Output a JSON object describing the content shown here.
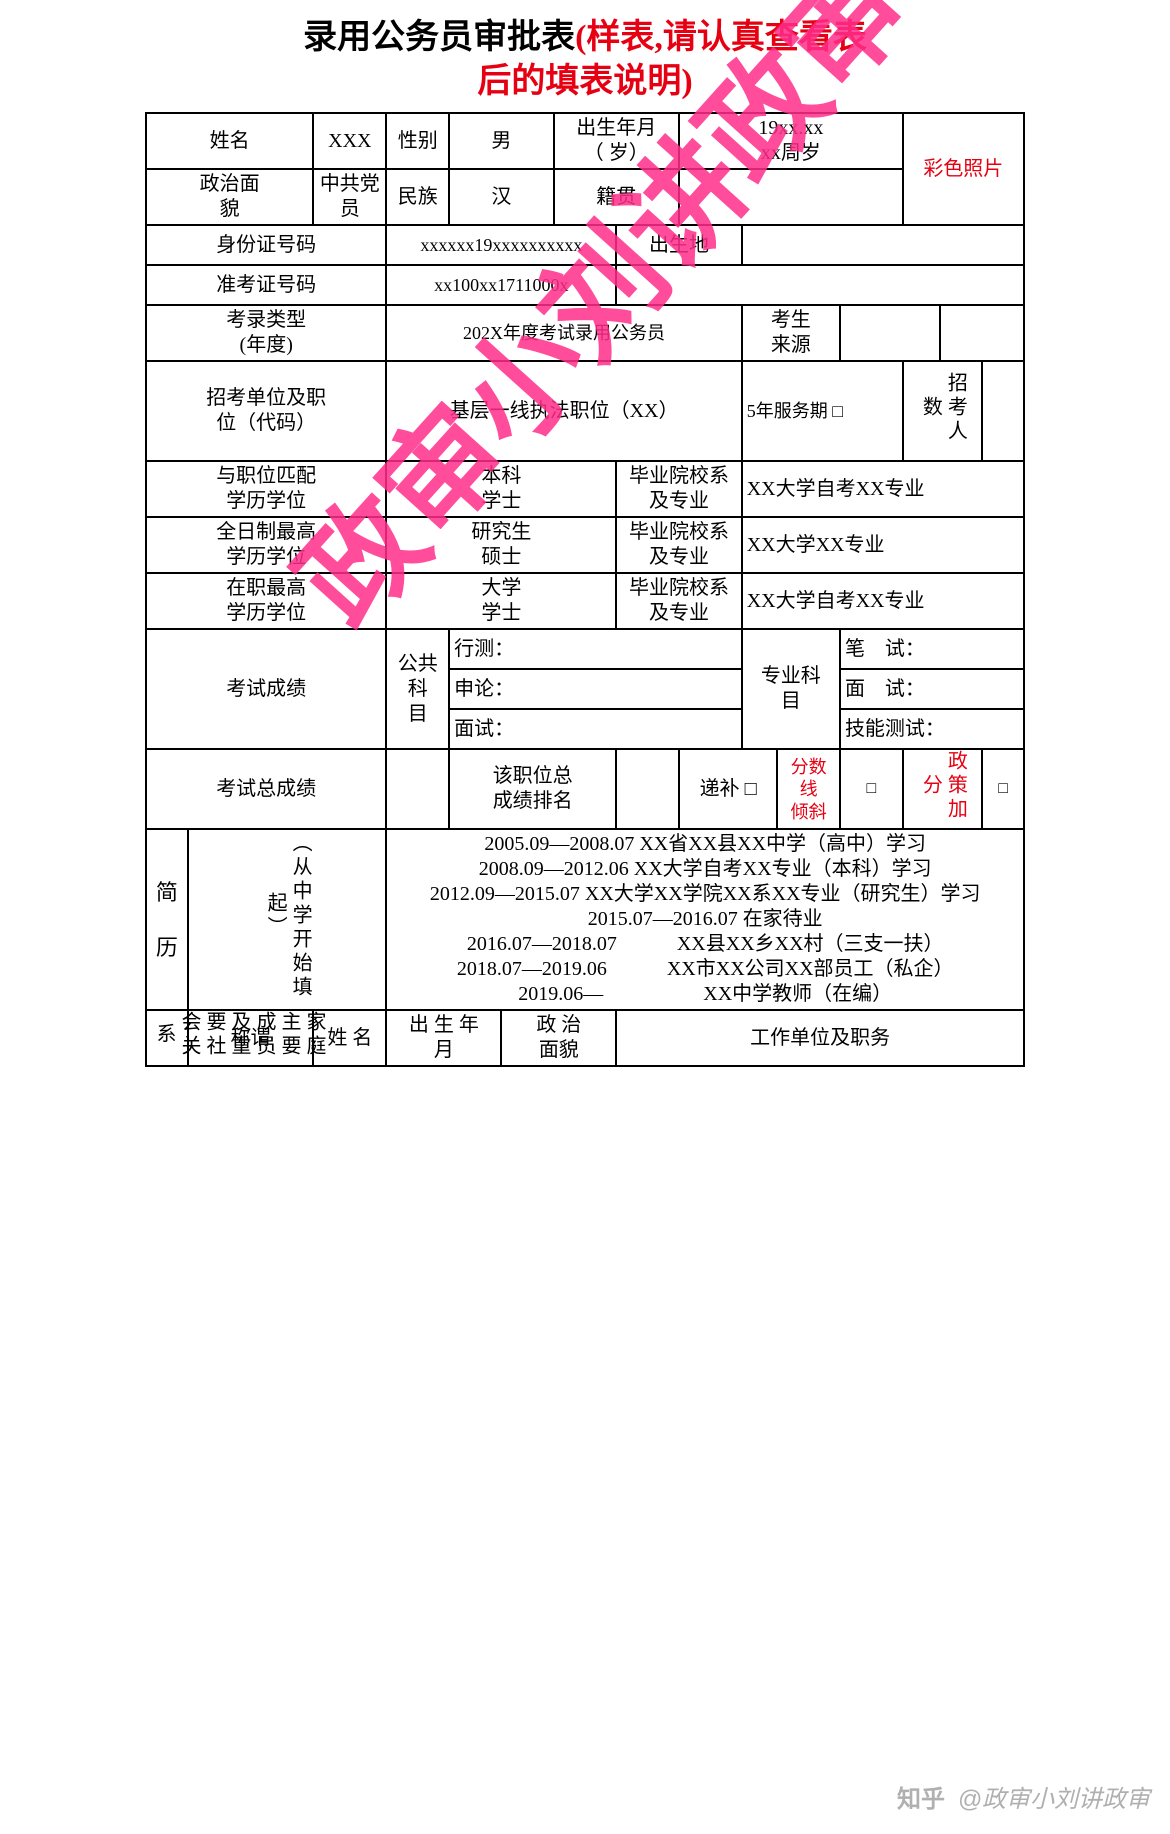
{
  "title": {
    "black": "录用公务员审批表",
    "red_line1": "(样表,请认真查看表",
    "red_line2": "后的填表说明)"
  },
  "row1": {
    "name_lbl": "姓名",
    "name_val": "XXX",
    "sex_lbl": "性别",
    "sex_val": "男",
    "birth_lbl": "出生年月\n（ 岁）",
    "birth_val": "19xx.xx\nxx周岁",
    "photo": "彩色照片"
  },
  "row2": {
    "pol_lbl": "政治面\n貌",
    "pol_val": "中共党\n员",
    "eth_lbl": "民族",
    "eth_val": "汉",
    "native_lbl": "籍贯"
  },
  "row3": {
    "id_lbl": "身份证号码",
    "id_val": "xxxxxx19xxxxxxxxxx",
    "birthplace_lbl": "出生地"
  },
  "row4": {
    "exam_no_lbl": "准考证号码",
    "exam_no_val": "xx100xx1711000x"
  },
  "row5": {
    "exam_type_lbl": "考录类型\n(年度)",
    "exam_type_val": "202X年度考试录用公务员",
    "source_lbl": "考生\n来源"
  },
  "row6": {
    "unit_lbl": "招考单位及职\n位（代码）",
    "unit_val": "基层一线执法职位（XX）",
    "service_val": "5年服务期 □",
    "recruit_cnt_lbl": "招考人数"
  },
  "row7": {
    "match_edu_lbl": "与职位匹配\n学历学位",
    "match_edu_val": "本科\n学士",
    "grad_lbl": "毕业院校系\n及专业",
    "grad_val": "XX大学自考XX专业"
  },
  "row8": {
    "ft_edu_lbl": "全日制最高\n学历学位",
    "ft_edu_val": "研究生\n硕士",
    "grad_lbl": "毕业院校系\n及专业",
    "grad_val": "XX大学XX专业"
  },
  "row9": {
    "job_edu_lbl": "在职最高\n学历学位",
    "job_edu_val": "大学\n学士",
    "grad_lbl": "毕业院校系\n及专业",
    "grad_val": "XX大学自考XX专业"
  },
  "row10": {
    "score_lbl": "考试成绩",
    "public_lbl": "公共科\n目",
    "xingce_lbl": "行测：",
    "pro_lbl": "专业科\n目",
    "written_lbl": "笔　试："
  },
  "row11": {
    "shenlun_lbl": "申论：",
    "interview_lbl": "面　试："
  },
  "row12": {
    "mianshi_lbl": "面试：",
    "skill_lbl": "技能测试："
  },
  "row13": {
    "total_lbl": "考试总成绩",
    "rank_lbl": "该职位总\n成绩排名",
    "dibu_lbl": "递补",
    "tilt_lbl": "分数\n线\n倾斜",
    "bonus_lbl": "政策加分"
  },
  "resume": {
    "side_lbl": "简\n\n历",
    "side_note": "（从中学开始填起）",
    "lines": [
      "2005.09—2008.07 XX省XX县XX中学（高中）学习",
      "2008.09—2012.06 XX大学自考XX专业（本科）学习",
      "2012.09—2015.07 XX大学XX学院XX系XX专业（研究生）学习",
      "2015.07—2016.07 在家待业",
      "2016.07—2018.07　　　XX县XX乡XX村（三支一扶）",
      "2018.07—2019.06　　　XX市XX公司XX部员工（私企）",
      "2019.06—　　　　　XX中学教师（在编）"
    ]
  },
  "family": {
    "side_lbl": "家庭主要成员及重要社会关系",
    "cols": {
      "rel": "称谓",
      "name": "姓 名",
      "birth": "出 生 年\n月",
      "pol": "政 治\n面貌",
      "work": "工作单位及职务"
    }
  },
  "watermark": "政审小刘讲政审",
  "zhihu": {
    "logo": "知乎",
    "author": "@政审小刘讲政审"
  }
}
